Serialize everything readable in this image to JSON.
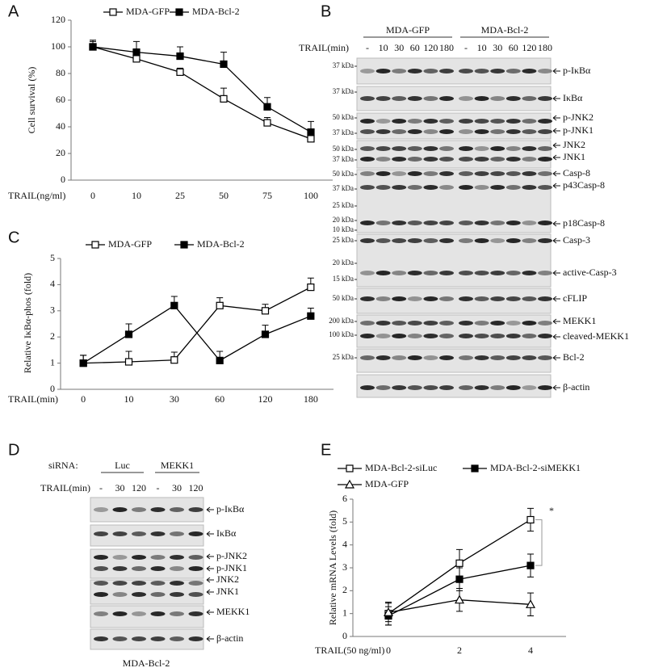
{
  "panel_labels": [
    "A",
    "B",
    "C",
    "D",
    "E"
  ],
  "chart_data": [
    {
      "type": "line",
      "xlabel": "TRAIL(ng/ml)",
      "ylabel": "Cell survival (%)",
      "categories": [
        "0",
        "10",
        "25",
        "50",
        "75",
        "100"
      ],
      "ylim": [
        0,
        120
      ],
      "yticks": [
        0,
        20,
        40,
        60,
        80,
        100,
        120
      ],
      "legend": "top",
      "error_bars": "up",
      "series": [
        {
          "name": "MDA-GFP",
          "color": "#000000",
          "marker": "open-square",
          "values": [
            100,
            91,
            81,
            61,
            43,
            31
          ],
          "errors": [
            4,
            4,
            3,
            8,
            4,
            3
          ]
        },
        {
          "name": "MDA-Bcl-2",
          "color": "#000000",
          "marker": "filled-square",
          "values": [
            100,
            96,
            93,
            87,
            55,
            36
          ],
          "errors": [
            5,
            8,
            7,
            9,
            7,
            8
          ]
        }
      ]
    },
    {
      "type": "line",
      "xlabel": "TRAIL(min)",
      "ylabel": "Relative IκBα-phos (fold)",
      "categories": [
        "0",
        "10",
        "30",
        "60",
        "120",
        "180"
      ],
      "ylim": [
        0,
        5
      ],
      "yticks": [
        0,
        1,
        2,
        3,
        4,
        5
      ],
      "legend": "top",
      "error_bars": "up",
      "series": [
        {
          "name": "MDA-GFP",
          "color": "#000000",
          "marker": "open-square",
          "values": [
            1,
            1.05,
            1.12,
            3.2,
            3.0,
            3.9
          ],
          "errors": [
            0.3,
            0.4,
            0.3,
            0.3,
            0.25,
            0.35
          ]
        },
        {
          "name": "MDA-Bcl-2",
          "color": "#000000",
          "marker": "filled-square",
          "values": [
            1,
            2.1,
            3.2,
            1.1,
            2.1,
            2.8
          ],
          "errors": [
            0.3,
            0.4,
            0.35,
            0.35,
            0.35,
            0.3
          ]
        }
      ]
    },
    {
      "type": "line",
      "xlabel": "TRAIL(50 ng/ml)",
      "ylabel": "Relative mRNA Levels (fold)",
      "categories": [
        "0",
        "2",
        "4"
      ],
      "ylim": [
        0,
        6
      ],
      "yticks": [
        0,
        1,
        2,
        3,
        4,
        5,
        6
      ],
      "legend": "top-left",
      "error_bars": "both",
      "annotation": "*",
      "series": [
        {
          "name": "MDA-Bcl-2-siLuc",
          "color": "#000000",
          "marker": "open-square",
          "values": [
            1.0,
            3.2,
            5.1
          ],
          "errors": [
            0.5,
            0.6,
            0.5
          ]
        },
        {
          "name": "MDA-Bcl-2-siMEKK1",
          "color": "#000000",
          "marker": "filled-square",
          "values": [
            0.9,
            2.5,
            3.1
          ],
          "errors": [
            0.4,
            0.5,
            0.5
          ]
        },
        {
          "name": "MDA-GFP",
          "color": "#000000",
          "marker": "open-triangle",
          "values": [
            1.05,
            1.6,
            1.4
          ],
          "errors": [
            0.4,
            0.5,
            0.5
          ]
        }
      ]
    }
  ],
  "blots": [
    {
      "groups": [
        "MDA-GFP",
        "MDA-Bcl-2"
      ],
      "lane_title": "TRAIL(min)",
      "lanes": [
        "-",
        "10",
        "30",
        "60",
        "120",
        "180",
        "-",
        "10",
        "30",
        "60",
        "120",
        "180"
      ],
      "rows": [
        {
          "markers": [
            "37 kDa"
          ],
          "labels": [
            "p-IκBα"
          ]
        },
        {
          "markers": [
            "37 kDa"
          ],
          "labels": [
            "IκBα"
          ]
        },
        {
          "markers": [
            "50 kDa",
            "37 kDa"
          ],
          "labels": [
            "p-JNK2",
            "p-JNK1"
          ]
        },
        {
          "markers": [
            "50 kDa",
            "37 kDa"
          ],
          "labels": [
            "JNK2",
            "JNK1"
          ]
        },
        {
          "markers": [
            "50 kDa",
            "37 kDa",
            "25 kDa",
            "20 kDa",
            "10 kDa"
          ],
          "labels": [
            "Casp-8",
            "p43Casp-8",
            "p18Casp-8"
          ]
        },
        {
          "markers": [
            "25 kDa",
            "20 kDa",
            "15 kDa"
          ],
          "labels": [
            "Casp-3",
            "active-Casp-3"
          ]
        },
        {
          "markers": [
            "50 kDa"
          ],
          "labels": [
            "cFLIP"
          ]
        },
        {
          "markers": [
            "200 kDa",
            "100 kDa"
          ],
          "labels": [
            "MEKK1",
            "cleaved-MEKK1"
          ]
        },
        {
          "markers": [
            "25 kDa"
          ],
          "labels": [
            "Bcl-2"
          ]
        },
        {
          "markers": [],
          "labels": [
            "β-actin"
          ]
        }
      ]
    },
    {
      "treatment_title": "siRNA:",
      "groups": [
        "Luc",
        "MEKK1"
      ],
      "lane_title": "TRAIL(min)",
      "lanes": [
        "-",
        "30",
        "120",
        "-",
        "30",
        "120"
      ],
      "rows": [
        {
          "labels": [
            "p-IκBα"
          ]
        },
        {
          "labels": [
            "IκBα"
          ]
        },
        {
          "labels": [
            "p-JNK2",
            "p-JNK1"
          ]
        },
        {
          "labels": [
            "JNK2",
            "JNK1"
          ]
        },
        {
          "labels": [
            "MEKK1"
          ]
        },
        {
          "labels": [
            "β-actin"
          ]
        }
      ],
      "caption": "MDA-Bcl-2"
    }
  ]
}
